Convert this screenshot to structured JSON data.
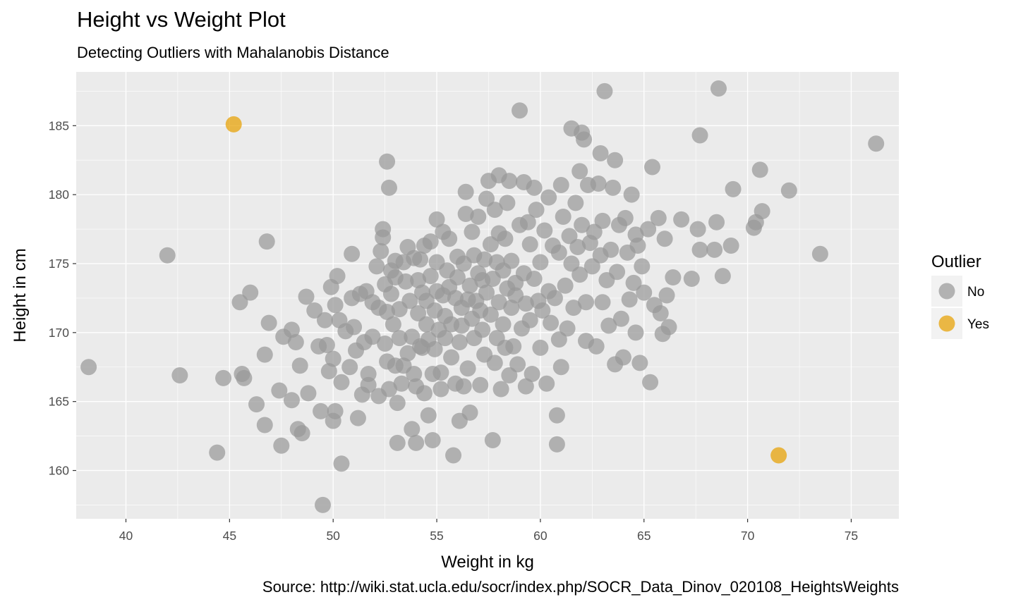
{
  "colors": {
    "panel": "#ebebeb",
    "grid": "#ffffff",
    "no": "#999999",
    "yes": "#E69F00"
  },
  "chart_data": {
    "type": "scatter",
    "title": "Height vs Weight Plot",
    "subtitle": "Detecting Outliers with Mahalanobis Distance",
    "caption": "Source: http://wiki.stat.ucla.edu/socr/index.php/SOCR_Data_Dinov_020108_HeightsWeights",
    "xlabel": "Weight in kg",
    "ylabel": "Height in cm",
    "xlim": [
      37.6,
      77.3
    ],
    "ylim": [
      156.5,
      188.9
    ],
    "xticks": [
      40,
      45,
      50,
      55,
      60,
      65,
      70,
      75
    ],
    "yticks": [
      160,
      165,
      170,
      175,
      180,
      185
    ],
    "grid": true,
    "legend": {
      "title": "Outlier",
      "position": "right",
      "entries": [
        "No",
        "Yes"
      ]
    },
    "series": [
      {
        "name": "No",
        "color": "#999999",
        "points": [
          [
            38.2,
            167.5
          ],
          [
            42.0,
            175.6
          ],
          [
            42.6,
            166.9
          ],
          [
            44.4,
            161.3
          ],
          [
            44.7,
            166.7
          ],
          [
            45.6,
            167.0
          ],
          [
            45.7,
            166.7
          ],
          [
            45.5,
            172.2
          ],
          [
            46.0,
            172.9
          ],
          [
            46.3,
            164.8
          ],
          [
            46.7,
            168.4
          ],
          [
            46.7,
            163.3
          ],
          [
            46.8,
            176.6
          ],
          [
            46.9,
            170.7
          ],
          [
            47.4,
            165.8
          ],
          [
            47.5,
            161.8
          ],
          [
            47.6,
            169.7
          ],
          [
            48.0,
            170.2
          ],
          [
            48.0,
            165.1
          ],
          [
            48.2,
            169.3
          ],
          [
            48.3,
            163.0
          ],
          [
            48.4,
            167.6
          ],
          [
            48.5,
            162.7
          ],
          [
            48.7,
            172.6
          ],
          [
            48.8,
            165.6
          ],
          [
            49.1,
            171.6
          ],
          [
            49.3,
            169.0
          ],
          [
            49.4,
            164.3
          ],
          [
            49.5,
            157.5
          ],
          [
            49.6,
            170.9
          ],
          [
            49.7,
            169.1
          ],
          [
            49.8,
            167.2
          ],
          [
            49.9,
            173.3
          ],
          [
            50.0,
            163.6
          ],
          [
            50.0,
            168.1
          ],
          [
            50.1,
            164.3
          ],
          [
            50.1,
            172.0
          ],
          [
            50.2,
            174.1
          ],
          [
            50.3,
            170.9
          ],
          [
            50.4,
            166.4
          ],
          [
            50.4,
            160.5
          ],
          [
            50.6,
            170.1
          ],
          [
            50.8,
            167.5
          ],
          [
            50.9,
            175.7
          ],
          [
            50.9,
            172.5
          ],
          [
            51.0,
            170.4
          ],
          [
            51.1,
            168.7
          ],
          [
            51.2,
            163.8
          ],
          [
            51.3,
            172.8
          ],
          [
            51.4,
            165.5
          ],
          [
            51.5,
            169.3
          ],
          [
            51.6,
            173.0
          ],
          [
            51.7,
            167.0
          ],
          [
            51.7,
            166.2
          ],
          [
            51.9,
            172.2
          ],
          [
            51.9,
            169.7
          ],
          [
            52.1,
            174.8
          ],
          [
            52.2,
            165.4
          ],
          [
            52.2,
            171.8
          ],
          [
            52.3,
            175.9
          ],
          [
            52.4,
            177.5
          ],
          [
            52.4,
            176.9
          ],
          [
            52.5,
            173.5
          ],
          [
            52.5,
            169.2
          ],
          [
            52.6,
            182.4
          ],
          [
            52.6,
            171.5
          ],
          [
            52.6,
            167.9
          ],
          [
            52.7,
            165.9
          ],
          [
            52.7,
            180.5
          ],
          [
            52.8,
            174.5
          ],
          [
            52.8,
            172.8
          ],
          [
            52.9,
            170.6
          ],
          [
            53.0,
            167.6
          ],
          [
            53.0,
            174.0
          ],
          [
            53.0,
            175.2
          ],
          [
            53.1,
            164.9
          ],
          [
            53.1,
            162.0
          ],
          [
            53.2,
            171.7
          ],
          [
            53.2,
            169.6
          ],
          [
            53.3,
            166.3
          ],
          [
            53.4,
            167.6
          ],
          [
            53.4,
            175.1
          ],
          [
            53.5,
            173.7
          ],
          [
            53.6,
            176.2
          ],
          [
            53.6,
            168.5
          ],
          [
            53.7,
            172.3
          ],
          [
            53.8,
            163.0
          ],
          [
            53.8,
            169.7
          ],
          [
            53.9,
            175.4
          ],
          [
            53.9,
            167.0
          ],
          [
            54.0,
            166.1
          ],
          [
            54.0,
            162.0
          ],
          [
            54.1,
            171.4
          ],
          [
            54.1,
            173.8
          ],
          [
            54.2,
            175.3
          ],
          [
            54.2,
            169.0
          ],
          [
            54.3,
            172.9
          ],
          [
            54.3,
            168.9
          ],
          [
            54.4,
            165.6
          ],
          [
            54.4,
            176.3
          ],
          [
            54.5,
            172.3
          ],
          [
            54.5,
            170.6
          ],
          [
            54.6,
            164.0
          ],
          [
            54.6,
            169.5
          ],
          [
            54.7,
            174.1
          ],
          [
            54.7,
            176.6
          ],
          [
            54.8,
            167.0
          ],
          [
            54.8,
            162.2
          ],
          [
            54.9,
            168.8
          ],
          [
            54.9,
            171.6
          ],
          [
            55.0,
            173.0
          ],
          [
            55.0,
            175.1
          ],
          [
            55.0,
            178.2
          ],
          [
            55.1,
            170.2
          ],
          [
            55.2,
            165.9
          ],
          [
            55.2,
            167.1
          ],
          [
            55.3,
            172.7
          ],
          [
            55.3,
            177.3
          ],
          [
            55.4,
            169.6
          ],
          [
            55.4,
            171.2
          ],
          [
            55.5,
            174.5
          ],
          [
            55.6,
            176.8
          ],
          [
            55.6,
            173.3
          ],
          [
            55.7,
            168.2
          ],
          [
            55.7,
            170.6
          ],
          [
            55.8,
            161.1
          ],
          [
            55.9,
            166.3
          ],
          [
            55.9,
            172.5
          ],
          [
            56.0,
            174.0
          ],
          [
            56.0,
            175.5
          ],
          [
            56.1,
            163.6
          ],
          [
            56.1,
            169.3
          ],
          [
            56.2,
            170.5
          ],
          [
            56.2,
            171.8
          ],
          [
            56.3,
            166.1
          ],
          [
            56.3,
            175.0
          ],
          [
            56.4,
            178.6
          ],
          [
            56.4,
            180.2
          ],
          [
            56.5,
            172.4
          ],
          [
            56.5,
            167.4
          ],
          [
            56.6,
            173.4
          ],
          [
            56.6,
            164.2
          ],
          [
            56.7,
            171.0
          ],
          [
            56.7,
            177.3
          ],
          [
            56.8,
            169.6
          ],
          [
            56.8,
            175.6
          ],
          [
            56.9,
            172.3
          ],
          [
            57.0,
            174.3
          ],
          [
            57.0,
            178.4
          ],
          [
            57.1,
            171.6
          ],
          [
            57.1,
            166.2
          ],
          [
            57.2,
            173.8
          ],
          [
            57.2,
            170.2
          ],
          [
            57.3,
            175.3
          ],
          [
            57.3,
            168.4
          ],
          [
            57.4,
            179.7
          ],
          [
            57.4,
            172.9
          ],
          [
            57.5,
            181.0
          ],
          [
            57.6,
            176.4
          ],
          [
            57.6,
            171.3
          ],
          [
            57.7,
            162.2
          ],
          [
            57.7,
            173.9
          ],
          [
            57.8,
            178.9
          ],
          [
            57.8,
            167.8
          ],
          [
            57.9,
            175.1
          ],
          [
            57.9,
            169.6
          ],
          [
            58.0,
            181.4
          ],
          [
            58.0,
            172.2
          ],
          [
            58.0,
            177.2
          ],
          [
            58.1,
            165.9
          ],
          [
            58.2,
            174.5
          ],
          [
            58.2,
            170.6
          ],
          [
            58.3,
            176.8
          ],
          [
            58.3,
            168.9
          ],
          [
            58.4,
            173.2
          ],
          [
            58.4,
            179.4
          ],
          [
            58.5,
            166.9
          ],
          [
            58.5,
            181.0
          ],
          [
            58.6,
            171.8
          ],
          [
            58.6,
            175.2
          ],
          [
            58.7,
            169.0
          ],
          [
            58.8,
            173.6
          ],
          [
            58.8,
            172.7
          ],
          [
            58.9,
            167.7
          ],
          [
            59.0,
            177.8
          ],
          [
            59.0,
            186.1
          ],
          [
            59.1,
            170.3
          ],
          [
            59.2,
            174.3
          ],
          [
            59.2,
            180.9
          ],
          [
            59.3,
            166.1
          ],
          [
            59.3,
            172.1
          ],
          [
            59.4,
            178.0
          ],
          [
            59.5,
            176.4
          ],
          [
            59.5,
            170.9
          ],
          [
            59.6,
            167.0
          ],
          [
            59.7,
            173.9
          ],
          [
            59.7,
            180.5
          ],
          [
            59.8,
            178.9
          ],
          [
            59.9,
            172.3
          ],
          [
            60.0,
            168.9
          ],
          [
            60.0,
            175.1
          ],
          [
            60.1,
            171.6
          ],
          [
            60.2,
            177.4
          ],
          [
            60.3,
            166.3
          ],
          [
            60.4,
            173.0
          ],
          [
            60.4,
            179.8
          ],
          [
            60.5,
            170.7
          ],
          [
            60.6,
            176.3
          ],
          [
            60.7,
            172.5
          ],
          [
            60.8,
            161.9
          ],
          [
            60.8,
            164.0
          ],
          [
            60.9,
            169.5
          ],
          [
            60.9,
            175.8
          ],
          [
            61.0,
            180.7
          ],
          [
            61.0,
            167.5
          ],
          [
            61.1,
            178.4
          ],
          [
            61.2,
            173.4
          ],
          [
            61.3,
            170.3
          ],
          [
            61.4,
            177.0
          ],
          [
            61.5,
            184.8
          ],
          [
            61.5,
            175.0
          ],
          [
            61.6,
            171.8
          ],
          [
            61.7,
            179.4
          ],
          [
            61.8,
            176.2
          ],
          [
            61.9,
            181.7
          ],
          [
            61.9,
            174.2
          ],
          [
            62.0,
            184.5
          ],
          [
            62.0,
            177.8
          ],
          [
            62.1,
            184.0
          ],
          [
            62.2,
            172.2
          ],
          [
            62.2,
            169.4
          ],
          [
            62.3,
            180.7
          ],
          [
            62.4,
            176.5
          ],
          [
            62.5,
            174.8
          ],
          [
            62.6,
            177.3
          ],
          [
            62.7,
            169.0
          ],
          [
            62.8,
            180.8
          ],
          [
            62.9,
            183.0
          ],
          [
            62.9,
            175.6
          ],
          [
            63.0,
            172.2
          ],
          [
            63.0,
            178.1
          ],
          [
            63.1,
            187.5
          ],
          [
            63.2,
            173.8
          ],
          [
            63.3,
            170.5
          ],
          [
            63.4,
            176.0
          ],
          [
            63.5,
            180.5
          ],
          [
            63.6,
            182.5
          ],
          [
            63.6,
            167.7
          ],
          [
            63.7,
            174.4
          ],
          [
            63.8,
            177.8
          ],
          [
            63.9,
            171.0
          ],
          [
            64.0,
            168.2
          ],
          [
            64.1,
            178.3
          ],
          [
            64.2,
            175.8
          ],
          [
            64.3,
            172.4
          ],
          [
            64.4,
            180.0
          ],
          [
            64.5,
            173.6
          ],
          [
            64.6,
            177.1
          ],
          [
            64.6,
            170.0
          ],
          [
            64.7,
            176.3
          ],
          [
            64.8,
            167.8
          ],
          [
            64.9,
            174.8
          ],
          [
            65.0,
            172.9
          ],
          [
            65.2,
            177.5
          ],
          [
            65.3,
            166.4
          ],
          [
            65.4,
            182.0
          ],
          [
            65.5,
            172.0
          ],
          [
            65.7,
            178.3
          ],
          [
            65.8,
            171.4
          ],
          [
            65.9,
            169.9
          ],
          [
            66.0,
            176.8
          ],
          [
            66.1,
            172.7
          ],
          [
            66.2,
            170.4
          ],
          [
            66.4,
            174.0
          ],
          [
            66.8,
            178.2
          ],
          [
            67.3,
            173.9
          ],
          [
            67.6,
            177.5
          ],
          [
            67.7,
            184.3
          ],
          [
            67.7,
            176.0
          ],
          [
            68.4,
            176.0
          ],
          [
            68.5,
            178.0
          ],
          [
            68.6,
            187.7
          ],
          [
            68.8,
            174.1
          ],
          [
            69.2,
            176.3
          ],
          [
            69.3,
            180.4
          ],
          [
            70.3,
            177.6
          ],
          [
            70.4,
            178.0
          ],
          [
            70.6,
            181.8
          ],
          [
            70.7,
            178.8
          ],
          [
            72.0,
            180.3
          ],
          [
            73.5,
            175.7
          ],
          [
            76.2,
            183.7
          ]
        ]
      },
      {
        "name": "Yes",
        "color": "#E69F00",
        "points": [
          [
            45.2,
            185.1
          ],
          [
            71.5,
            161.1
          ]
        ]
      }
    ]
  }
}
